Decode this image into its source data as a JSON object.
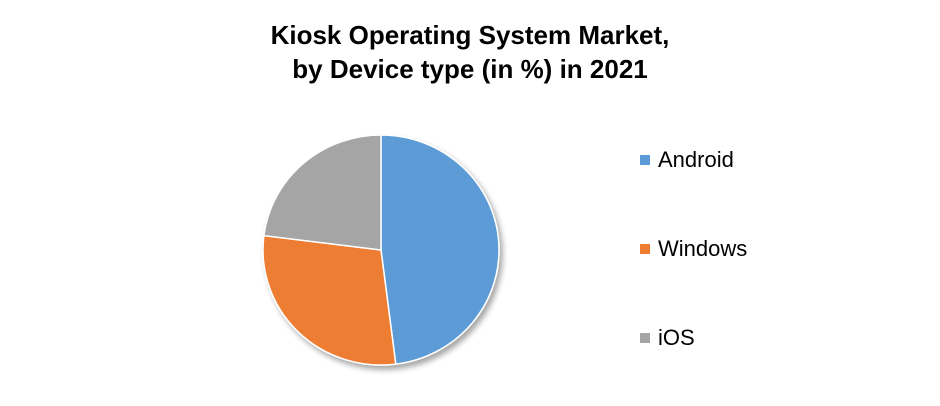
{
  "chart_data": {
    "type": "pie",
    "title_line1": "Kiosk Operating System Market,",
    "title_line2": "by Device type (in %) in 2021",
    "categories": [
      "Android",
      "Windows",
      "iOS"
    ],
    "values": [
      48,
      29,
      23
    ],
    "colors": [
      "#5b9bd5",
      "#ed7d31",
      "#a5a5a5"
    ],
    "legend_position": "right"
  }
}
